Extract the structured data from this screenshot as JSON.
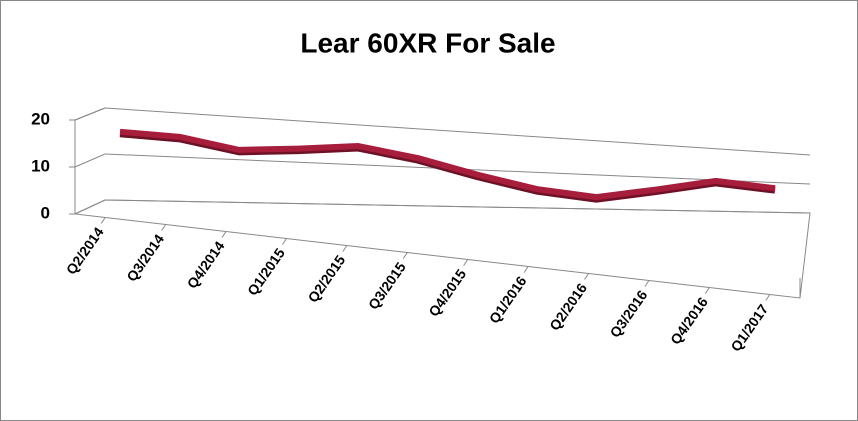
{
  "chart_data": {
    "type": "line",
    "title": "Lear 60XR For Sale",
    "categories": [
      "Q2/2014",
      "Q3/2014",
      "Q4/2014",
      "Q1/2015",
      "Q2/2015",
      "Q3/2015",
      "Q4/2015",
      "Q1/2016",
      "Q2/2016",
      "Q3/2016",
      "Q4/2016",
      "Q1/2017"
    ],
    "values": [
      15,
      14.6,
      12.3,
      13.3,
      14.7,
      12.4,
      8.7,
      5.3,
      3.5,
      6.3,
      9.7,
      8.1
    ],
    "color": "#a61e3c",
    "ylim": [
      0,
      20
    ],
    "yticks": [
      0,
      10,
      20
    ],
    "grid": true
  }
}
